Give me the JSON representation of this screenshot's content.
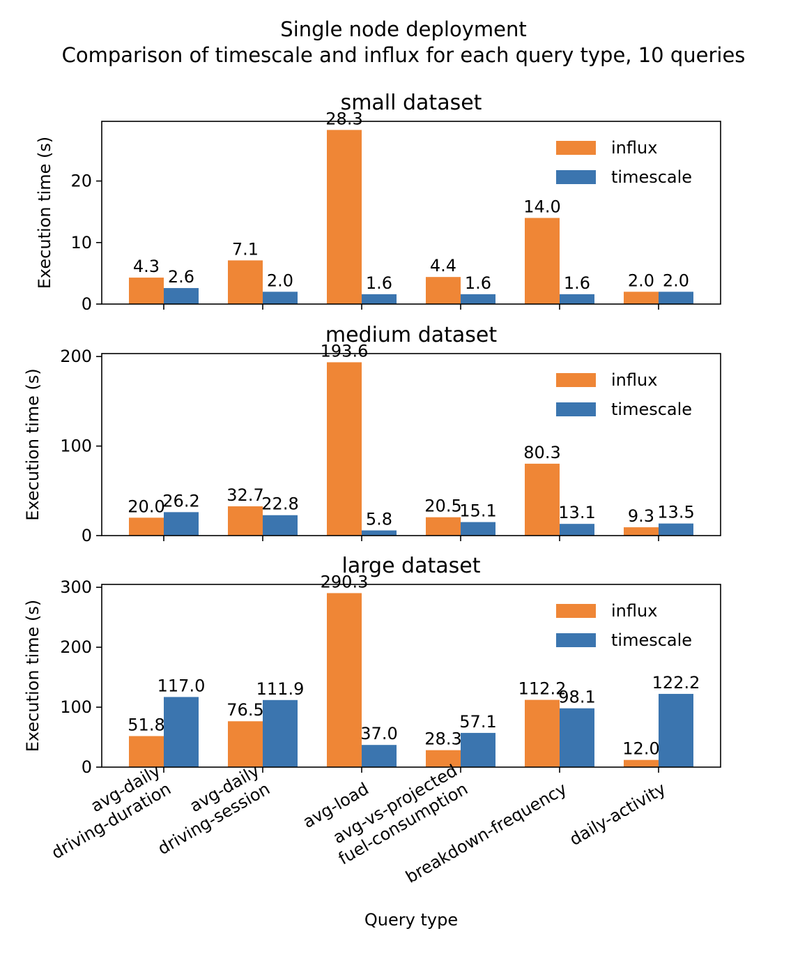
{
  "figure": {
    "title_line1": "Single node deployment",
    "title_line2": "Comparison of timescale and influx for each query type, 10 queries"
  },
  "chart_data": [
    {
      "type": "bar",
      "title": "small dataset",
      "xlabel": "",
      "ylabel": "Execution time (s)",
      "ylim": [
        0,
        29.7
      ],
      "yticks": [
        0,
        10,
        20
      ],
      "legend": "top-right",
      "categories": [
        "avg-daily driving-duration",
        "avg-daily driving-session",
        "avg-load",
        "avg-vs-projected fuel-consumption",
        "breakdown-frequency",
        "daily-activity"
      ],
      "series": [
        {
          "name": "influx",
          "color": "#ef8636",
          "values": [
            4.3,
            7.1,
            28.3,
            4.4,
            14.0,
            2.0
          ],
          "labels": [
            "4.3",
            "7.1",
            "28.3",
            "4.4",
            "14.0",
            "2.0"
          ]
        },
        {
          "name": "timescale",
          "color": "#3b75af",
          "values": [
            2.6,
            2.0,
            1.6,
            1.6,
            1.6,
            2.0
          ],
          "labels": [
            "2.6",
            "2.0",
            "1.6",
            "1.6",
            "1.6",
            "2.0"
          ]
        }
      ]
    },
    {
      "type": "bar",
      "title": "medium dataset",
      "xlabel": "",
      "ylabel": "Execution time (s)",
      "ylim": [
        0,
        203.3
      ],
      "yticks": [
        0,
        100,
        200
      ],
      "legend": "top-right",
      "categories": [
        "avg-daily driving-duration",
        "avg-daily driving-session",
        "avg-load",
        "avg-vs-projected fuel-consumption",
        "breakdown-frequency",
        "daily-activity"
      ],
      "series": [
        {
          "name": "influx",
          "color": "#ef8636",
          "values": [
            20.0,
            32.7,
            193.6,
            20.5,
            80.3,
            9.3
          ],
          "labels": [
            "20.0",
            "32.7",
            "193.6",
            "20.5",
            "80.3",
            "9.3"
          ]
        },
        {
          "name": "timescale",
          "color": "#3b75af",
          "values": [
            26.2,
            22.8,
            5.8,
            15.1,
            13.1,
            13.5
          ],
          "labels": [
            "26.2",
            "22.8",
            "5.8",
            "15.1",
            "13.1",
            "13.5"
          ]
        }
      ]
    },
    {
      "type": "bar",
      "title": "large dataset",
      "xlabel": "Query type",
      "ylabel": "Execution time (s)",
      "ylim": [
        0,
        304.8
      ],
      "yticks": [
        0,
        100,
        200,
        300
      ],
      "legend": "top-right",
      "categories": [
        "avg-daily driving-duration",
        "avg-daily driving-session",
        "avg-load",
        "avg-vs-projected fuel-consumption",
        "breakdown-frequency",
        "daily-activity"
      ],
      "xtick_labels": [
        [
          "avg-daily",
          "driving-duration"
        ],
        [
          "avg-daily",
          "driving-session"
        ],
        [
          "avg-load"
        ],
        [
          "avg-vs-projected",
          "fuel-consumption"
        ],
        [
          "breakdown-frequency"
        ],
        [
          "daily-activity"
        ]
      ],
      "series": [
        {
          "name": "influx",
          "color": "#ef8636",
          "values": [
            51.8,
            76.5,
            290.3,
            28.3,
            112.2,
            12.0
          ],
          "labels": [
            "51.8",
            "76.5",
            "290.3",
            "28.3",
            "112.2",
            "12.0"
          ]
        },
        {
          "name": "timescale",
          "color": "#3b75af",
          "values": [
            117.0,
            111.9,
            37.0,
            57.1,
            98.1,
            122.2
          ],
          "labels": [
            "117.0",
            "111.9",
            "37.0",
            "57.1",
            "98.1",
            "122.2"
          ]
        }
      ]
    }
  ]
}
